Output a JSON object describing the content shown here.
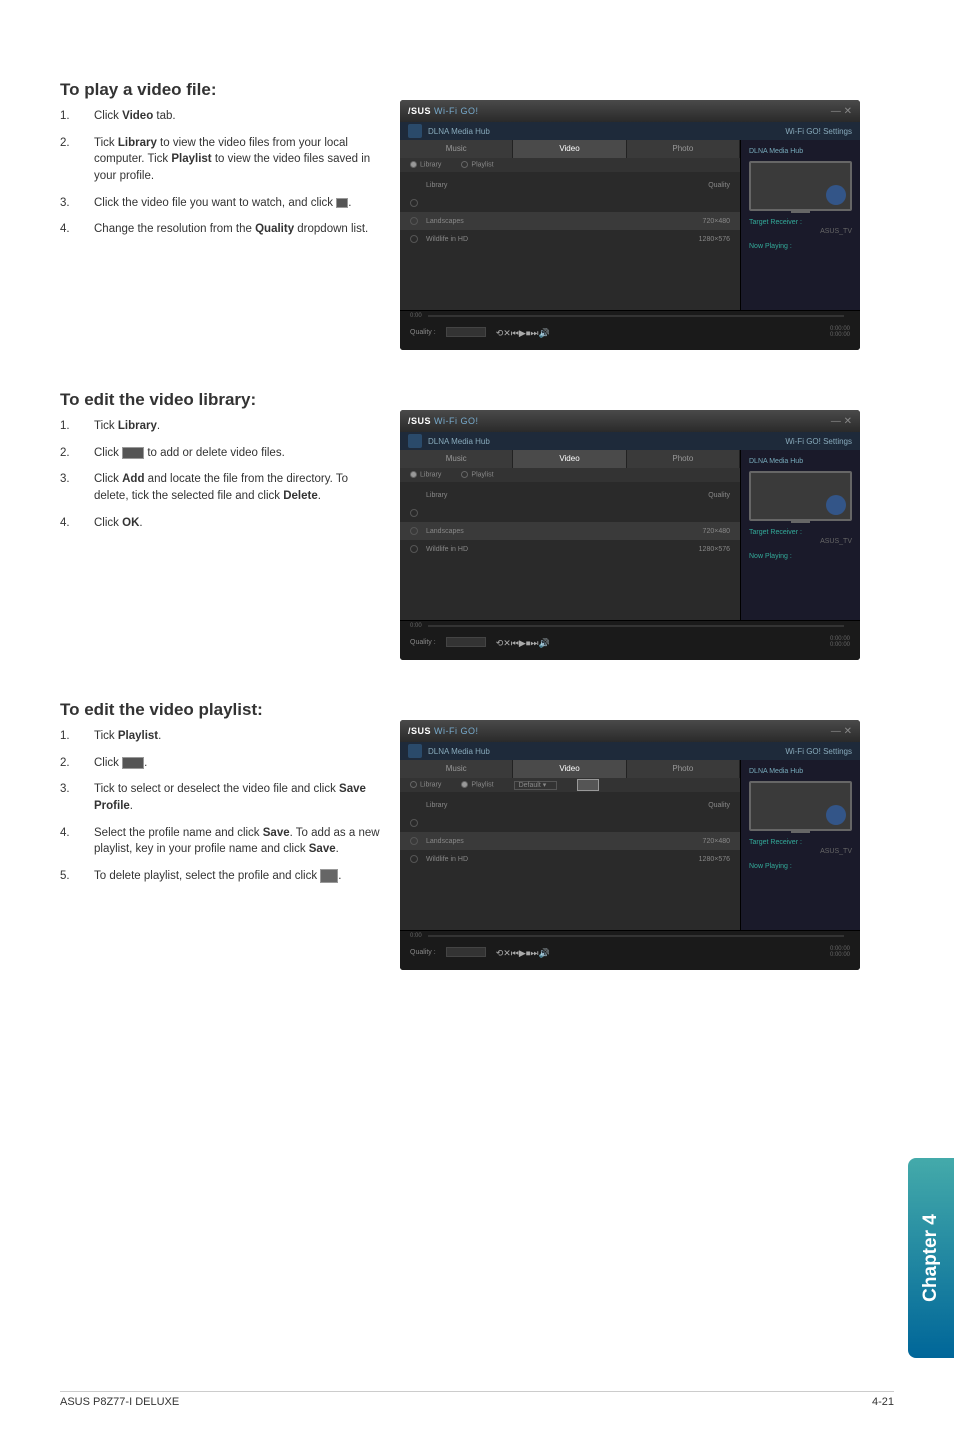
{
  "sections": [
    {
      "title": "To play a video file:",
      "steps": [
        {
          "n": "1.",
          "html": "Click <b>Video</b> tab."
        },
        {
          "n": "2.",
          "html": "Tick <b>Library</b> to view the video files from your local computer. Tick <b>Playlist</b> to view the video files saved in your profile."
        },
        {
          "n": "3.",
          "html": "Click the video file you want to watch, and click <span class='icon-stub play'></span>."
        },
        {
          "n": "4.",
          "html": "Change the resolution from the <b>Quality</b> dropdown list."
        }
      ]
    },
    {
      "title": "To edit the video library:",
      "steps": [
        {
          "n": "1.",
          "html": "Tick <b>Library</b>."
        },
        {
          "n": "2.",
          "html": "Click <span class='icon-stub wide'></span> to add or delete video files."
        },
        {
          "n": "3.",
          "html": "Click <b>Add</b> and locate the file from the directory. To delete, tick the selected file and click <b>Delete</b>."
        },
        {
          "n": "4.",
          "html": "Click <b>OK</b>."
        }
      ]
    },
    {
      "title": "To edit the video playlist:",
      "steps": [
        {
          "n": "1.",
          "html": "Tick <b>Playlist</b>."
        },
        {
          "n": "2.",
          "html": "Click <span class='icon-stub wide'></span>."
        },
        {
          "n": "3.",
          "html": "Tick to select or deselect the video file and click <b>Save Profile</b>."
        },
        {
          "n": "4.",
          "html": "Select the profile name and click <b>Save</b>. To add as a new playlist, key in your profile name and click <b>Save</b>."
        },
        {
          "n": "5.",
          "html": "To delete playlist, select the profile and click <span class='icon-stub del'></span>."
        }
      ]
    }
  ],
  "screenshot": {
    "brand": "/SUS",
    "product": "Wi-Fi GO!",
    "subheader": "DLNA Media Hub",
    "settings_link": "Wi-Fi GO! Settings",
    "tabs": {
      "music": "Music",
      "video": "Video",
      "photo": "Photo"
    },
    "subtabs": {
      "library": "Library",
      "playlist": "Playlist",
      "default_opt": "Default"
    },
    "cols": {
      "name": "Library",
      "quality": "Quality"
    },
    "rows_a": [
      {
        "name": "",
        "meta": ""
      },
      {
        "name": "Landscapes",
        "meta": "720×480"
      },
      {
        "name": "Wildlife in HD",
        "meta": "1280×576"
      }
    ],
    "side": {
      "hub": "DLNA Media Hub",
      "target": "Target Receiver :",
      "target_val": "ASUS_TV",
      "now": "Now Playing :"
    },
    "player": {
      "quality": "Quality :",
      "t0": "0:00",
      "t1": "0:00:00",
      "t2": "0:00:00"
    },
    "controls": [
      "⟲",
      "✕",
      "⏮",
      "▶",
      "⏹",
      "⏭",
      "🔊"
    ]
  },
  "chapter_tab": "Chapter 4",
  "footer": {
    "left": "ASUS P8Z77-I DELUXE",
    "right": "4-21"
  }
}
